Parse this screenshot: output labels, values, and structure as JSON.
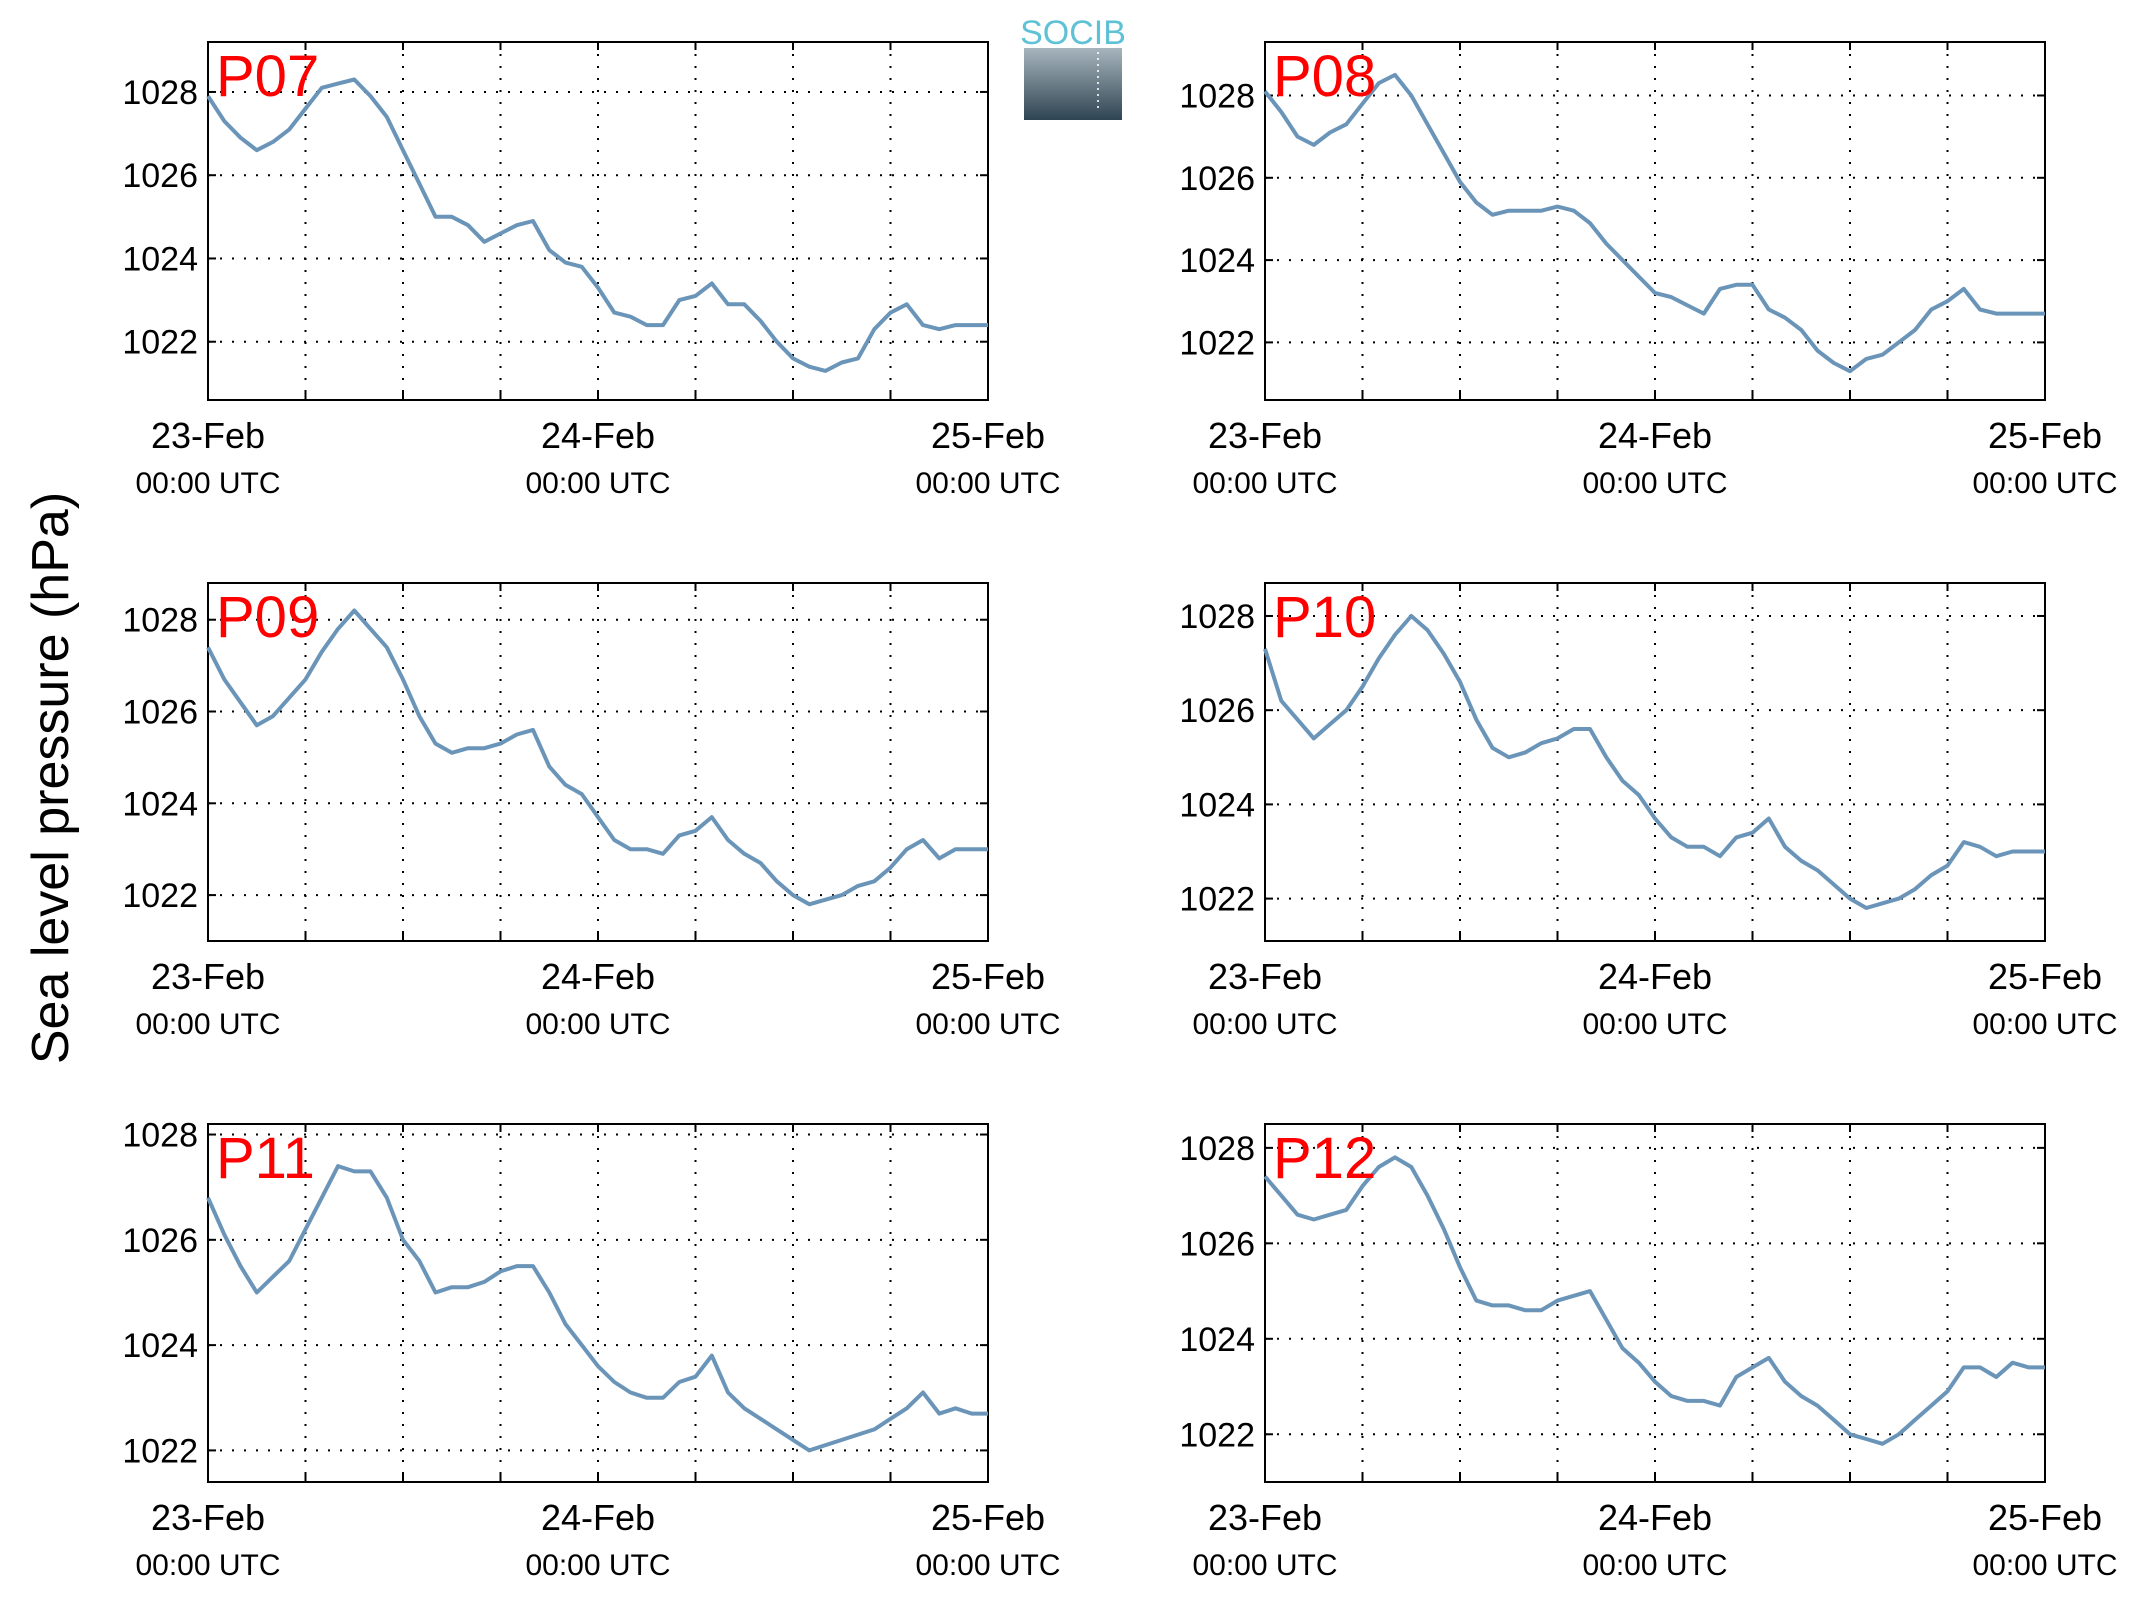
{
  "ylabel": "Sea level pressure (hPa)",
  "logo": {
    "text": "SOCIB"
  },
  "chart_data": [
    {
      "type": "line",
      "title": "P07",
      "grid": true,
      "line_color": "#6b95b8",
      "x_ticks": [
        {
          "t": 0,
          "date": "23-Feb",
          "time": "00:00 UTC"
        },
        {
          "t": 24,
          "date": "24-Feb",
          "time": "00:00 UTC"
        },
        {
          "t": 48,
          "date": "25-Feb",
          "time": "00:00 UTC"
        }
      ],
      "xlim": [
        0,
        48
      ],
      "ylim": [
        1020.6,
        1029.2
      ],
      "yticks": [
        1022,
        1024,
        1026,
        1028
      ],
      "x": [
        0,
        1,
        2,
        3,
        4,
        5,
        6,
        7,
        8,
        9,
        10,
        11,
        12,
        13,
        14,
        15,
        16,
        17,
        18,
        19,
        20,
        21,
        22,
        23,
        24,
        25,
        26,
        27,
        28,
        29,
        30,
        31,
        32,
        33,
        34,
        35,
        36,
        37,
        38,
        39,
        40,
        41,
        42,
        43,
        44,
        45,
        46,
        47,
        48
      ],
      "y": [
        1027.9,
        1027.3,
        1026.9,
        1026.6,
        1026.8,
        1027.1,
        1027.6,
        1028.1,
        1028.2,
        1028.3,
        1027.9,
        1027.4,
        1026.6,
        1025.8,
        1025.0,
        1025.0,
        1024.8,
        1024.4,
        1024.6,
        1024.8,
        1024.9,
        1024.2,
        1023.9,
        1023.8,
        1023.3,
        1022.7,
        1022.6,
        1022.4,
        1022.4,
        1023.0,
        1023.1,
        1023.4,
        1022.9,
        1022.9,
        1022.5,
        1022.0,
        1021.6,
        1021.4,
        1021.3,
        1021.5,
        1021.6,
        1022.3,
        1022.7,
        1022.9,
        1022.4,
        1022.3,
        1022.4,
        1022.4,
        1022.4
      ]
    },
    {
      "type": "line",
      "title": "P08",
      "grid": true,
      "line_color": "#6b95b8",
      "x_ticks": [
        {
          "t": 0,
          "date": "23-Feb",
          "time": "00:00 UTC"
        },
        {
          "t": 24,
          "date": "24-Feb",
          "time": "00:00 UTC"
        },
        {
          "t": 48,
          "date": "25-Feb",
          "time": "00:00 UTC"
        }
      ],
      "xlim": [
        0,
        48
      ],
      "ylim": [
        1020.6,
        1029.3
      ],
      "yticks": [
        1022,
        1024,
        1026,
        1028
      ],
      "x": [
        0,
        1,
        2,
        3,
        4,
        5,
        6,
        7,
        8,
        9,
        10,
        11,
        12,
        13,
        14,
        15,
        16,
        17,
        18,
        19,
        20,
        21,
        22,
        23,
        24,
        25,
        26,
        27,
        28,
        29,
        30,
        31,
        32,
        33,
        34,
        35,
        36,
        37,
        38,
        39,
        40,
        41,
        42,
        43,
        44,
        45,
        46,
        47,
        48
      ],
      "y": [
        1028.1,
        1027.6,
        1027.0,
        1026.8,
        1027.1,
        1027.3,
        1027.8,
        1028.3,
        1028.5,
        1028.0,
        1027.3,
        1026.6,
        1025.9,
        1025.4,
        1025.1,
        1025.2,
        1025.2,
        1025.2,
        1025.3,
        1025.2,
        1024.9,
        1024.4,
        1024.0,
        1023.6,
        1023.2,
        1023.1,
        1022.9,
        1022.7,
        1023.3,
        1023.4,
        1023.4,
        1022.8,
        1022.6,
        1022.3,
        1021.8,
        1021.5,
        1021.3,
        1021.6,
        1021.7,
        1022.0,
        1022.3,
        1022.8,
        1023.0,
        1023.3,
        1022.8,
        1022.7,
        1022.7,
        1022.7,
        1022.7
      ]
    },
    {
      "type": "line",
      "title": "P09",
      "grid": true,
      "line_color": "#6b95b8",
      "x_ticks": [
        {
          "t": 0,
          "date": "23-Feb",
          "time": "00:00 UTC"
        },
        {
          "t": 24,
          "date": "24-Feb",
          "time": "00:00 UTC"
        },
        {
          "t": 48,
          "date": "25-Feb",
          "time": "00:00 UTC"
        }
      ],
      "xlim": [
        0,
        48
      ],
      "ylim": [
        1021.0,
        1028.8
      ],
      "yticks": [
        1022,
        1024,
        1026,
        1028
      ],
      "x": [
        0,
        1,
        2,
        3,
        4,
        5,
        6,
        7,
        8,
        9,
        10,
        11,
        12,
        13,
        14,
        15,
        16,
        17,
        18,
        19,
        20,
        21,
        22,
        23,
        24,
        25,
        26,
        27,
        28,
        29,
        30,
        31,
        32,
        33,
        34,
        35,
        36,
        37,
        38,
        39,
        40,
        41,
        42,
        43,
        44,
        45,
        46,
        47,
        48
      ],
      "y": [
        1027.4,
        1026.7,
        1026.2,
        1025.7,
        1025.9,
        1026.3,
        1026.7,
        1027.3,
        1027.8,
        1028.2,
        1027.8,
        1027.4,
        1026.7,
        1025.9,
        1025.3,
        1025.1,
        1025.2,
        1025.2,
        1025.3,
        1025.5,
        1025.6,
        1024.8,
        1024.4,
        1024.2,
        1023.7,
        1023.2,
        1023.0,
        1023.0,
        1022.9,
        1023.3,
        1023.4,
        1023.7,
        1023.2,
        1022.9,
        1022.7,
        1022.3,
        1022.0,
        1021.8,
        1021.9,
        1022.0,
        1022.2,
        1022.3,
        1022.6,
        1023.0,
        1023.2,
        1022.8,
        1023.0,
        1023.0,
        1023.0
      ]
    },
    {
      "type": "line",
      "title": "P10",
      "grid": true,
      "line_color": "#6b95b8",
      "x_ticks": [
        {
          "t": 0,
          "date": "23-Feb",
          "time": "00:00 UTC"
        },
        {
          "t": 24,
          "date": "24-Feb",
          "time": "00:00 UTC"
        },
        {
          "t": 48,
          "date": "25-Feb",
          "time": "00:00 UTC"
        }
      ],
      "xlim": [
        0,
        48
      ],
      "ylim": [
        1021.1,
        1028.7
      ],
      "yticks": [
        1022,
        1024,
        1026,
        1028
      ],
      "x": [
        0,
        1,
        2,
        3,
        4,
        5,
        6,
        7,
        8,
        9,
        10,
        11,
        12,
        13,
        14,
        15,
        16,
        17,
        18,
        19,
        20,
        21,
        22,
        23,
        24,
        25,
        26,
        27,
        28,
        29,
        30,
        31,
        32,
        33,
        34,
        35,
        36,
        37,
        38,
        39,
        40,
        41,
        42,
        43,
        44,
        45,
        46,
        47,
        48
      ],
      "y": [
        1027.3,
        1026.2,
        1025.8,
        1025.4,
        1025.7,
        1026.0,
        1026.5,
        1027.1,
        1027.6,
        1028.0,
        1027.7,
        1027.2,
        1026.6,
        1025.8,
        1025.2,
        1025.0,
        1025.1,
        1025.3,
        1025.4,
        1025.6,
        1025.6,
        1025.0,
        1024.5,
        1024.2,
        1023.7,
        1023.3,
        1023.1,
        1023.1,
        1022.9,
        1023.3,
        1023.4,
        1023.7,
        1023.1,
        1022.8,
        1022.6,
        1022.3,
        1022.0,
        1021.8,
        1021.9,
        1022.0,
        1022.2,
        1022.5,
        1022.7,
        1023.2,
        1023.1,
        1022.9,
        1023.0,
        1023.0,
        1023.0
      ]
    },
    {
      "type": "line",
      "title": "P11",
      "grid": true,
      "line_color": "#6b95b8",
      "x_ticks": [
        {
          "t": 0,
          "date": "23-Feb",
          "time": "00:00 UTC"
        },
        {
          "t": 24,
          "date": "24-Feb",
          "time": "00:00 UTC"
        },
        {
          "t": 48,
          "date": "25-Feb",
          "time": "00:00 UTC"
        }
      ],
      "xlim": [
        0,
        48
      ],
      "ylim": [
        1021.4,
        1028.2
      ],
      "yticks": [
        1022,
        1024,
        1026,
        1028
      ],
      "x": [
        0,
        1,
        2,
        3,
        4,
        5,
        6,
        7,
        8,
        9,
        10,
        11,
        12,
        13,
        14,
        15,
        16,
        17,
        18,
        19,
        20,
        21,
        22,
        23,
        24,
        25,
        26,
        27,
        28,
        29,
        30,
        31,
        32,
        33,
        34,
        35,
        36,
        37,
        38,
        39,
        40,
        41,
        42,
        43,
        44,
        45,
        46,
        47,
        48
      ],
      "y": [
        1026.8,
        1026.1,
        1025.5,
        1025.0,
        1025.3,
        1025.6,
        1026.2,
        1026.8,
        1027.4,
        1027.3,
        1027.3,
        1026.8,
        1026.0,
        1025.6,
        1025.0,
        1025.1,
        1025.1,
        1025.2,
        1025.4,
        1025.5,
        1025.5,
        1025.0,
        1024.4,
        1024.0,
        1023.6,
        1023.3,
        1023.1,
        1023.0,
        1023.0,
        1023.3,
        1023.4,
        1023.8,
        1023.1,
        1022.8,
        1022.6,
        1022.4,
        1022.2,
        1022.0,
        1022.1,
        1022.2,
        1022.3,
        1022.4,
        1022.6,
        1022.8,
        1023.1,
        1022.7,
        1022.8,
        1022.7,
        1022.7
      ]
    },
    {
      "type": "line",
      "title": "P12",
      "grid": true,
      "line_color": "#6b95b8",
      "x_ticks": [
        {
          "t": 0,
          "date": "23-Feb",
          "time": "00:00 UTC"
        },
        {
          "t": 24,
          "date": "24-Feb",
          "time": "00:00 UTC"
        },
        {
          "t": 48,
          "date": "25-Feb",
          "time": "00:00 UTC"
        }
      ],
      "xlim": [
        0,
        48
      ],
      "ylim": [
        1021.0,
        1028.5
      ],
      "yticks": [
        1022,
        1024,
        1026,
        1028
      ],
      "x": [
        0,
        1,
        2,
        3,
        4,
        5,
        6,
        7,
        8,
        9,
        10,
        11,
        12,
        13,
        14,
        15,
        16,
        17,
        18,
        19,
        20,
        21,
        22,
        23,
        24,
        25,
        26,
        27,
        28,
        29,
        30,
        31,
        32,
        33,
        34,
        35,
        36,
        37,
        38,
        39,
        40,
        41,
        42,
        43,
        44,
        45,
        46,
        47,
        48
      ],
      "y": [
        1027.4,
        1027.0,
        1026.6,
        1026.5,
        1026.6,
        1026.7,
        1027.2,
        1027.6,
        1027.8,
        1027.6,
        1027.0,
        1026.3,
        1025.5,
        1024.8,
        1024.7,
        1024.7,
        1024.6,
        1024.6,
        1024.8,
        1024.9,
        1025.0,
        1024.4,
        1023.8,
        1023.5,
        1023.1,
        1022.8,
        1022.7,
        1022.7,
        1022.6,
        1023.2,
        1023.4,
        1023.6,
        1023.1,
        1022.8,
        1022.6,
        1022.3,
        1022.0,
        1021.9,
        1021.8,
        1022.0,
        1022.3,
        1022.6,
        1022.9,
        1023.4,
        1023.4,
        1023.2,
        1023.5,
        1023.4,
        1023.4
      ]
    }
  ]
}
